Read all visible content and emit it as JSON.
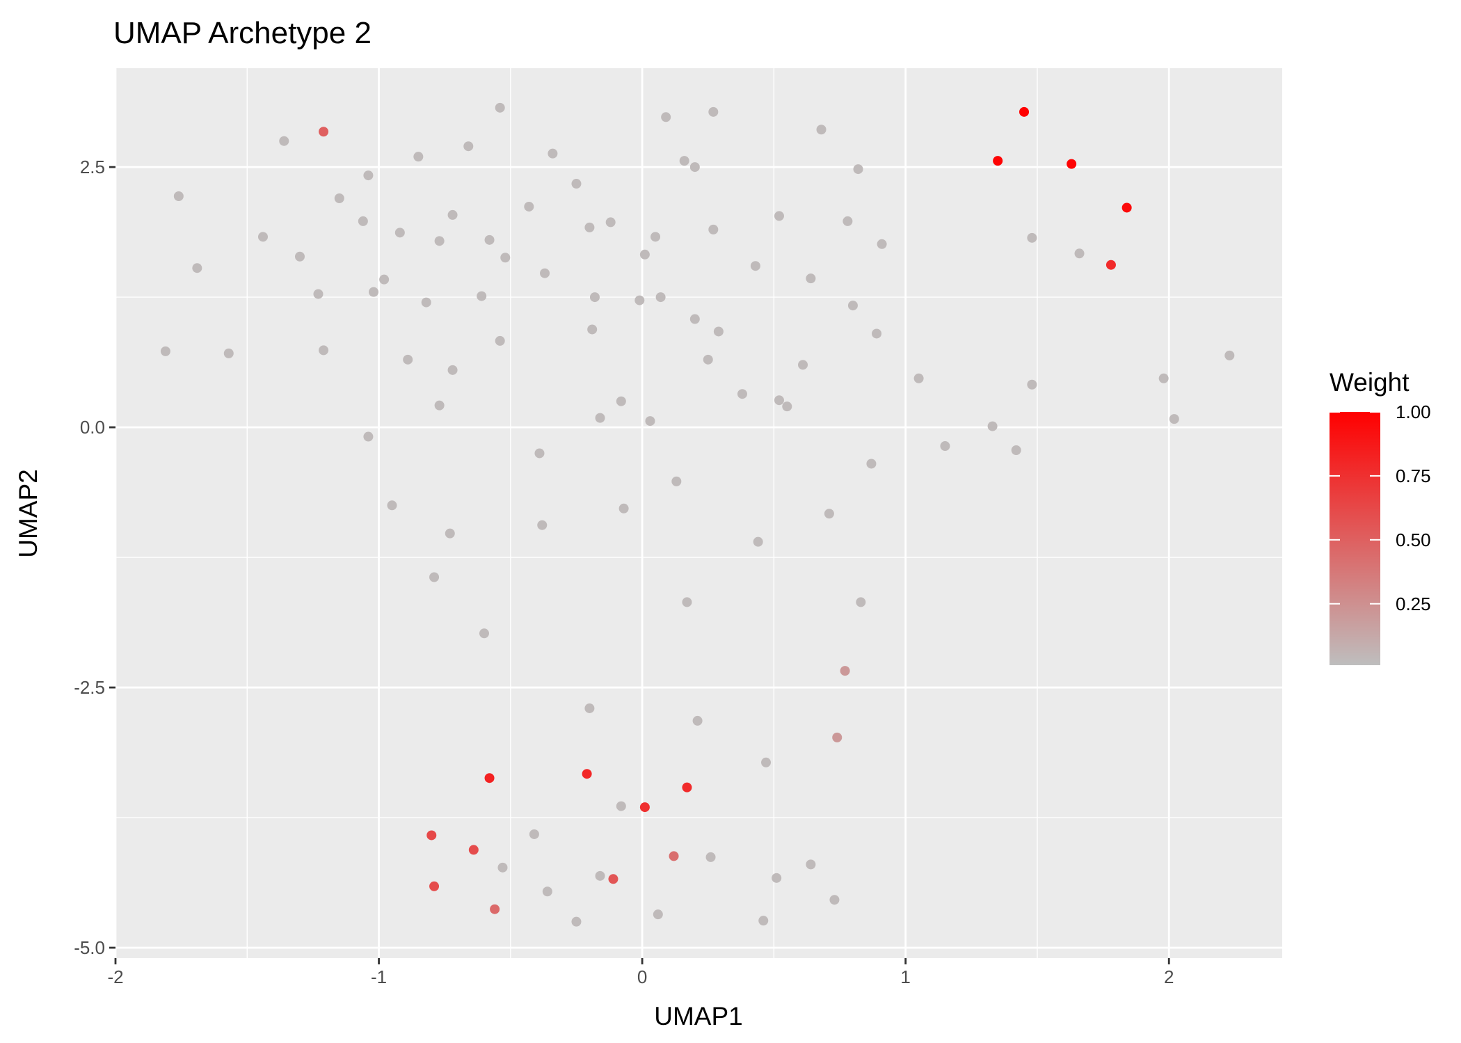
{
  "chart_data": {
    "type": "scatter",
    "title": "UMAP Archetype 2",
    "xlabel": "UMAP1",
    "ylabel": "UMAP2",
    "xlim": [
      -2,
      2.43
    ],
    "ylim": [
      -5.1,
      3.45
    ],
    "x_ticks": [
      -2,
      -1,
      0,
      1,
      2
    ],
    "x_tick_labels": [
      "-2",
      "-1",
      "0",
      "1",
      "2"
    ],
    "y_ticks": [
      -5,
      -2.5,
      0,
      2.5
    ],
    "y_tick_labels": [
      "-5.0",
      "-2.5",
      "0.0",
      "2.5"
    ],
    "grid": true,
    "legend": {
      "title": "Weight",
      "placement": "right",
      "low_color": "#bebebe",
      "high_color": "#ff0000",
      "range": [
        0.01,
        1.0
      ],
      "breaks": [
        1.0,
        0.75,
        0.5,
        0.25
      ],
      "break_labels": [
        "1.00",
        "0.75",
        "0.50",
        "0.25"
      ]
    },
    "points": [
      {
        "x": -1.21,
        "y": 2.84,
        "w": 0.5
      },
      {
        "x": 1.45,
        "y": 3.03,
        "w": 1.0
      },
      {
        "x": 1.35,
        "y": 2.56,
        "w": 0.98
      },
      {
        "x": 1.63,
        "y": 2.53,
        "w": 0.98
      },
      {
        "x": 1.84,
        "y": 2.11,
        "w": 0.95
      },
      {
        "x": 1.78,
        "y": 1.56,
        "w": 0.78
      },
      {
        "x": -0.58,
        "y": -3.37,
        "w": 0.82
      },
      {
        "x": -0.21,
        "y": -3.33,
        "w": 0.8
      },
      {
        "x": 0.17,
        "y": -3.46,
        "w": 0.78
      },
      {
        "x": 0.01,
        "y": -3.65,
        "w": 0.75
      },
      {
        "x": -0.8,
        "y": -3.92,
        "w": 0.62
      },
      {
        "x": -0.64,
        "y": -4.06,
        "w": 0.6
      },
      {
        "x": -0.79,
        "y": -4.41,
        "w": 0.6
      },
      {
        "x": -0.56,
        "y": -4.63,
        "w": 0.45
      },
      {
        "x": -0.11,
        "y": -4.34,
        "w": 0.55
      },
      {
        "x": 0.12,
        "y": -4.12,
        "w": 0.42
      },
      {
        "x": 0.77,
        "y": -2.34,
        "w": 0.2
      },
      {
        "x": 0.74,
        "y": -2.98,
        "w": 0.2
      },
      {
        "x": -1.76,
        "y": 2.22,
        "w": 0.02
      },
      {
        "x": -1.69,
        "y": 1.53,
        "w": 0.02
      },
      {
        "x": -1.81,
        "y": 0.73,
        "w": 0.02
      },
      {
        "x": -1.57,
        "y": 0.71,
        "w": 0.02
      },
      {
        "x": -1.44,
        "y": 1.83,
        "w": 0.02
      },
      {
        "x": -1.36,
        "y": 2.75,
        "w": 0.02
      },
      {
        "x": -1.3,
        "y": 1.64,
        "w": 0.02
      },
      {
        "x": -1.23,
        "y": 1.28,
        "w": 0.02
      },
      {
        "x": -1.21,
        "y": 0.74,
        "w": 0.02
      },
      {
        "x": -1.15,
        "y": 2.2,
        "w": 0.02
      },
      {
        "x": -1.06,
        "y": 1.98,
        "w": 0.02
      },
      {
        "x": -1.04,
        "y": 2.42,
        "w": 0.02
      },
      {
        "x": -1.02,
        "y": 1.3,
        "w": 0.02
      },
      {
        "x": -0.98,
        "y": 1.42,
        "w": 0.02
      },
      {
        "x": -1.04,
        "y": -0.09,
        "w": 0.02
      },
      {
        "x": -0.95,
        "y": -0.75,
        "w": 0.02
      },
      {
        "x": -0.92,
        "y": 1.87,
        "w": 0.02
      },
      {
        "x": -0.89,
        "y": 0.65,
        "w": 0.02
      },
      {
        "x": -0.85,
        "y": 2.6,
        "w": 0.02
      },
      {
        "x": -0.82,
        "y": 1.2,
        "w": 0.02
      },
      {
        "x": -0.79,
        "y": -1.44,
        "w": 0.02
      },
      {
        "x": -0.77,
        "y": 1.79,
        "w": 0.02
      },
      {
        "x": -0.77,
        "y": 0.21,
        "w": 0.02
      },
      {
        "x": -0.72,
        "y": 2.04,
        "w": 0.02
      },
      {
        "x": -0.72,
        "y": 0.55,
        "w": 0.02
      },
      {
        "x": -0.73,
        "y": -1.02,
        "w": 0.02
      },
      {
        "x": -0.66,
        "y": 2.7,
        "w": 0.02
      },
      {
        "x": -0.61,
        "y": 1.26,
        "w": 0.02
      },
      {
        "x": -0.6,
        "y": -1.98,
        "w": 0.02
      },
      {
        "x": -0.58,
        "y": 1.8,
        "w": 0.02
      },
      {
        "x": -0.54,
        "y": 3.07,
        "w": 0.02
      },
      {
        "x": -0.54,
        "y": 0.83,
        "w": 0.02
      },
      {
        "x": -0.52,
        "y": 1.63,
        "w": 0.02
      },
      {
        "x": -0.43,
        "y": 2.12,
        "w": 0.02
      },
      {
        "x": -0.39,
        "y": -0.25,
        "w": 0.02
      },
      {
        "x": -0.38,
        "y": -0.94,
        "w": 0.02
      },
      {
        "x": -0.37,
        "y": 1.48,
        "w": 0.02
      },
      {
        "x": -0.34,
        "y": 2.63,
        "w": 0.02
      },
      {
        "x": -0.25,
        "y": 2.34,
        "w": 0.02
      },
      {
        "x": -0.2,
        "y": 1.92,
        "w": 0.02
      },
      {
        "x": -0.19,
        "y": 0.94,
        "w": 0.02
      },
      {
        "x": -0.18,
        "y": 1.25,
        "w": 0.02
      },
      {
        "x": -0.16,
        "y": 0.09,
        "w": 0.02
      },
      {
        "x": -0.12,
        "y": 1.97,
        "w": 0.02
      },
      {
        "x": -0.08,
        "y": 0.25,
        "w": 0.02
      },
      {
        "x": -0.07,
        "y": -0.78,
        "w": 0.02
      },
      {
        "x": -0.01,
        "y": 1.22,
        "w": 0.02
      },
      {
        "x": 0.01,
        "y": 1.66,
        "w": 0.02
      },
      {
        "x": 0.03,
        "y": 0.06,
        "w": 0.02
      },
      {
        "x": 0.05,
        "y": 1.83,
        "w": 0.02
      },
      {
        "x": 0.07,
        "y": 1.25,
        "w": 0.02
      },
      {
        "x": 0.09,
        "y": 2.98,
        "w": 0.02
      },
      {
        "x": 0.13,
        "y": -0.52,
        "w": 0.02
      },
      {
        "x": 0.16,
        "y": 2.56,
        "w": 0.02
      },
      {
        "x": 0.17,
        "y": -1.68,
        "w": 0.02
      },
      {
        "x": 0.2,
        "y": 2.5,
        "w": 0.02
      },
      {
        "x": 0.2,
        "y": 1.04,
        "w": 0.02
      },
      {
        "x": 0.25,
        "y": 0.65,
        "w": 0.02
      },
      {
        "x": 0.27,
        "y": 3.03,
        "w": 0.02
      },
      {
        "x": 0.27,
        "y": 1.9,
        "w": 0.02
      },
      {
        "x": 0.29,
        "y": 0.92,
        "w": 0.02
      },
      {
        "x": 0.38,
        "y": 0.32,
        "w": 0.02
      },
      {
        "x": 0.43,
        "y": 1.55,
        "w": 0.02
      },
      {
        "x": 0.44,
        "y": -1.1,
        "w": 0.02
      },
      {
        "x": 0.52,
        "y": 2.03,
        "w": 0.02
      },
      {
        "x": 0.52,
        "y": 0.26,
        "w": 0.02
      },
      {
        "x": 0.55,
        "y": 0.2,
        "w": 0.02
      },
      {
        "x": 0.61,
        "y": 0.6,
        "w": 0.02
      },
      {
        "x": 0.64,
        "y": 1.43,
        "w": 0.02
      },
      {
        "x": 0.68,
        "y": 2.86,
        "w": 0.02
      },
      {
        "x": 0.71,
        "y": -0.83,
        "w": 0.02
      },
      {
        "x": 0.78,
        "y": 1.98,
        "w": 0.02
      },
      {
        "x": 0.8,
        "y": 1.17,
        "w": 0.02
      },
      {
        "x": 0.82,
        "y": 2.48,
        "w": 0.02
      },
      {
        "x": 0.83,
        "y": -1.68,
        "w": 0.02
      },
      {
        "x": 0.87,
        "y": -0.35,
        "w": 0.02
      },
      {
        "x": 0.89,
        "y": 0.9,
        "w": 0.02
      },
      {
        "x": 0.91,
        "y": 1.76,
        "w": 0.02
      },
      {
        "x": 1.05,
        "y": 0.47,
        "w": 0.02
      },
      {
        "x": 1.15,
        "y": -0.18,
        "w": 0.02
      },
      {
        "x": 1.33,
        "y": 0.01,
        "w": 0.02
      },
      {
        "x": 1.42,
        "y": -0.22,
        "w": 0.02
      },
      {
        "x": 1.48,
        "y": 1.82,
        "w": 0.02
      },
      {
        "x": 1.48,
        "y": 0.41,
        "w": 0.02
      },
      {
        "x": 1.66,
        "y": 1.67,
        "w": 0.02
      },
      {
        "x": 1.98,
        "y": 0.47,
        "w": 0.02
      },
      {
        "x": 2.02,
        "y": 0.08,
        "w": 0.02
      },
      {
        "x": 2.23,
        "y": 0.69,
        "w": 0.02
      },
      {
        "x": -0.2,
        "y": -2.7,
        "w": 0.02
      },
      {
        "x": 0.21,
        "y": -2.82,
        "w": 0.02
      },
      {
        "x": 0.47,
        "y": -3.22,
        "w": 0.02
      },
      {
        "x": -0.08,
        "y": -3.64,
        "w": 0.02
      },
      {
        "x": -0.41,
        "y": -3.91,
        "w": 0.02
      },
      {
        "x": -0.53,
        "y": -4.23,
        "w": 0.02
      },
      {
        "x": -0.16,
        "y": -4.31,
        "w": 0.02
      },
      {
        "x": -0.36,
        "y": -4.46,
        "w": 0.02
      },
      {
        "x": 0.26,
        "y": -4.13,
        "w": 0.02
      },
      {
        "x": 0.51,
        "y": -4.33,
        "w": 0.02
      },
      {
        "x": 0.64,
        "y": -4.2,
        "w": 0.02
      },
      {
        "x": 0.73,
        "y": -4.54,
        "w": 0.02
      },
      {
        "x": -0.25,
        "y": -4.75,
        "w": 0.02
      },
      {
        "x": 0.06,
        "y": -4.68,
        "w": 0.02
      },
      {
        "x": 0.46,
        "y": -4.74,
        "w": 0.02
      }
    ]
  }
}
